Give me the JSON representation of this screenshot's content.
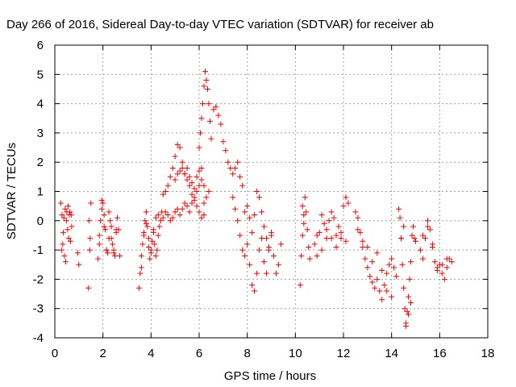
{
  "chart_data": {
    "type": "scatter",
    "title": "Day 266 of 2016, Sidereal Day-to-day VTEC variation (SDTVAR) for receiver ab",
    "xlabel": "GPS time / hours",
    "ylabel": "SDTVAR / TECUs",
    "xlim": [
      0,
      18
    ],
    "ylim": [
      -4,
      6
    ],
    "xticks": [
      0,
      2,
      4,
      6,
      8,
      10,
      12,
      14,
      16,
      18
    ],
    "yticks": [
      -4,
      -3,
      -2,
      -1,
      0,
      1,
      2,
      3,
      4,
      5,
      6
    ],
    "grid": true,
    "marker": "+",
    "color": "#ff0000",
    "series": [
      {
        "name": "",
        "x": [
          0.25,
          0.3,
          0.35,
          0.4,
          0.45,
          0.5,
          0.55,
          0.6,
          0.65,
          0.7,
          0.28,
          0.33,
          0.38,
          0.43,
          0.48,
          0.53,
          0.58,
          0.63,
          0.68,
          0.95,
          1.0,
          1.4,
          1.45,
          1.5,
          1.42,
          1.47,
          1.8,
          1.85,
          1.9,
          1.95,
          2.0,
          2.05,
          2.1,
          2.15,
          2.2,
          2.25,
          2.3,
          2.35,
          2.4,
          2.45,
          2.5,
          2.55,
          2.6,
          2.65,
          2.7,
          1.85,
          1.95,
          2.05,
          2.15,
          2.25,
          2.35,
          2.45,
          2.55,
          3.5,
          3.55,
          3.6,
          3.65,
          3.7,
          3.75,
          3.8,
          3.85,
          3.9,
          3.95,
          4.0,
          4.05,
          4.1,
          4.15,
          4.2,
          4.25,
          4.3,
          4.35,
          4.4,
          4.45,
          3.6,
          3.7,
          3.8,
          3.9,
          4.0,
          4.1,
          4.2,
          4.3,
          4.5,
          4.6,
          4.7,
          4.8,
          4.9,
          5.0,
          5.1,
          5.2,
          5.3,
          5.4,
          5.5,
          5.6,
          5.7,
          5.8,
          5.9,
          6.0,
          6.1,
          6.2,
          4.5,
          4.6,
          4.7,
          4.8,
          4.9,
          5.0,
          5.1,
          5.2,
          5.3,
          5.4,
          5.5,
          5.6,
          5.7,
          5.8,
          5.9,
          6.0,
          6.1,
          6.2,
          5.0,
          5.1,
          5.2,
          5.3,
          5.4,
          5.5,
          5.6,
          5.7,
          5.8,
          5.9,
          6.0,
          6.1,
          6.2,
          6.3,
          6.4,
          6.0,
          6.05,
          6.1,
          6.15,
          6.2,
          6.25,
          6.3,
          6.35,
          6.4,
          6.45,
          6.5,
          6.6,
          6.7,
          6.8,
          6.9,
          7.0,
          7.1,
          7.2,
          7.3,
          7.4,
          7.5,
          7.6,
          7.7,
          7.8,
          7.4,
          7.5,
          7.6,
          7.7,
          7.8,
          7.9,
          8.0,
          8.1,
          8.2,
          8.3,
          8.4,
          8.5,
          8.6,
          8.7,
          8.8,
          8.9,
          9.0,
          9.1,
          9.2,
          9.3,
          9.4,
          7.9,
          8.0,
          8.1,
          8.2,
          8.3,
          8.4,
          8.5,
          8.6,
          8.7,
          8.8,
          8.9,
          9.0,
          10.2,
          10.25,
          10.3,
          10.35,
          10.4,
          10.45,
          10.5,
          10.55,
          10.6,
          10.3,
          10.35,
          10.8,
          10.9,
          11.0,
          11.1,
          11.2,
          11.3,
          11.4,
          11.5,
          11.6,
          11.7,
          11.8,
          11.9,
          12.0,
          12.1,
          12.2,
          10.9,
          11.1,
          11.3,
          11.5,
          11.7,
          11.9,
          12.1,
          12.5,
          12.6,
          12.7,
          12.8,
          12.9,
          13.0,
          13.1,
          13.2,
          13.3,
          13.4,
          13.5,
          13.6,
          13.7,
          13.8,
          13.9,
          14.0,
          14.1,
          14.2,
          12.6,
          12.8,
          13.0,
          13.2,
          13.4,
          13.6,
          13.8,
          14.0,
          14.3,
          14.35,
          14.4,
          14.45,
          14.5,
          14.55,
          14.6,
          14.65,
          14.7,
          14.75,
          14.8,
          14.85,
          14.9,
          14.95,
          15.0,
          14.4,
          14.5,
          14.6,
          14.7,
          14.8,
          15.2,
          15.3,
          15.4,
          15.5,
          15.6,
          15.7,
          15.8,
          15.9,
          16.0,
          16.1,
          16.2,
          16.3,
          16.4,
          16.5,
          15.3,
          15.5,
          15.7,
          15.9,
          16.1,
          16.3
        ],
        "y": [
          0.6,
          0.2,
          -0.4,
          -1.2,
          -1.4,
          0.3,
          0.5,
          0.2,
          -0.7,
          -0.2,
          -1.0,
          -0.8,
          0.1,
          0.4,
          0.0,
          -0.3,
          -0.6,
          0.3,
          0.2,
          -1.1,
          -1.5,
          -2.3,
          -1.0,
          0.6,
          0.0,
          -0.6,
          -1.3,
          -0.8,
          0.0,
          0.4,
          0.6,
          0.2,
          -0.3,
          -1.0,
          -1.1,
          -0.6,
          0.0,
          -0.2,
          -0.8,
          -1.1,
          -1.2,
          -0.4,
          0.1,
          -0.3,
          -1.2,
          -0.5,
          0.7,
          -0.2,
          -1.0,
          0.3,
          -0.6,
          -1.0,
          -0.3,
          -2.3,
          -1.8,
          -1.2,
          -0.8,
          -0.4,
          0.0,
          0.3,
          -0.2,
          -0.9,
          -1.3,
          -1.1,
          -0.7,
          -0.3,
          -0.8,
          -1.2,
          -1.0,
          -0.5,
          -0.2,
          0.0,
          0.3,
          -1.6,
          -0.5,
          -0.1,
          -0.6,
          -1.0,
          -0.4,
          0.1,
          0.2,
          0.1,
          0.3,
          0.2,
          0.0,
          0.1,
          0.3,
          0.4,
          0.2,
          0.4,
          0.6,
          0.5,
          0.3,
          0.6,
          0.8,
          1.0,
          1.2,
          1.4,
          1.2,
          0.9,
          1.0,
          1.2,
          1.5,
          1.8,
          2.2,
          2.6,
          2.5,
          2.0,
          1.6,
          1.4,
          1.2,
          0.9,
          0.7,
          0.5,
          0.3,
          0.1,
          0.2,
          1.4,
          1.6,
          1.7,
          1.8,
          1.6,
          1.8,
          1.5,
          1.3,
          1.1,
          1.5,
          1.7,
          1.8,
          0.6,
          0.8,
          1.0,
          2.5,
          3.0,
          3.5,
          4.0,
          4.6,
          5.1,
          4.8,
          4.5,
          4.0,
          3.4,
          2.8,
          3.8,
          3.9,
          3.6,
          3.3,
          2.7,
          2.4,
          2.0,
          1.8,
          1.6,
          1.8,
          2.0,
          1.5,
          1.2,
          0.8,
          0.4,
          0.0,
          -0.5,
          -1.0,
          -1.2,
          -0.8,
          -1.5,
          -2.2,
          -2.4,
          -1.8,
          -1.0,
          -0.6,
          -1.4,
          -1.8,
          -1.0,
          -0.4,
          -1.2,
          -1.8,
          -1.5,
          -0.8,
          0.3,
          0.5,
          0.1,
          -0.4,
          0.2,
          1.0,
          0.8,
          0.3,
          -0.2,
          -0.6,
          -0.9,
          -0.5,
          -2.2,
          -1.2,
          -0.5,
          0.2,
          0.8,
          0.3,
          -0.3,
          -0.9,
          -1.3,
          0.5,
          -0.1,
          -0.8,
          -1.2,
          -0.4,
          0.2,
          -0.1,
          -0.6,
          0.0,
          0.3,
          0.1,
          -0.5,
          -0.2,
          -0.6,
          0.5,
          0.8,
          0.6,
          -0.5,
          -1.0,
          -0.3,
          -0.6,
          -0.9,
          -0.4,
          -0.7,
          0.3,
          0.1,
          -0.4,
          -0.9,
          -1.3,
          -1.6,
          -1.9,
          -2.1,
          -2.3,
          -2.0,
          -2.4,
          -2.7,
          -2.2,
          -1.8,
          -1.5,
          -1.3,
          -1.6,
          -1.9,
          -0.3,
          -0.7,
          -0.9,
          -1.4,
          -1.1,
          -1.7,
          -2.4,
          -2.6,
          0.4,
          0.1,
          -0.6,
          -1.5,
          -2.3,
          -3.0,
          -3.5,
          -3.1,
          -2.6,
          -2.0,
          -1.4,
          -0.5,
          -0.2,
          -0.6,
          -0.7,
          -0.6,
          -0.2,
          -3.6,
          -3.2,
          -2.8,
          -1.0,
          -1.3,
          -0.6,
          0.0,
          -0.3,
          -0.8,
          -1.4,
          -1.6,
          -1.5,
          -1.8,
          -2.0,
          -1.6,
          -1.3,
          -1.4,
          -0.5,
          -0.2,
          -0.9,
          -1.7,
          -1.5,
          -1.3
        ]
      }
    ]
  }
}
